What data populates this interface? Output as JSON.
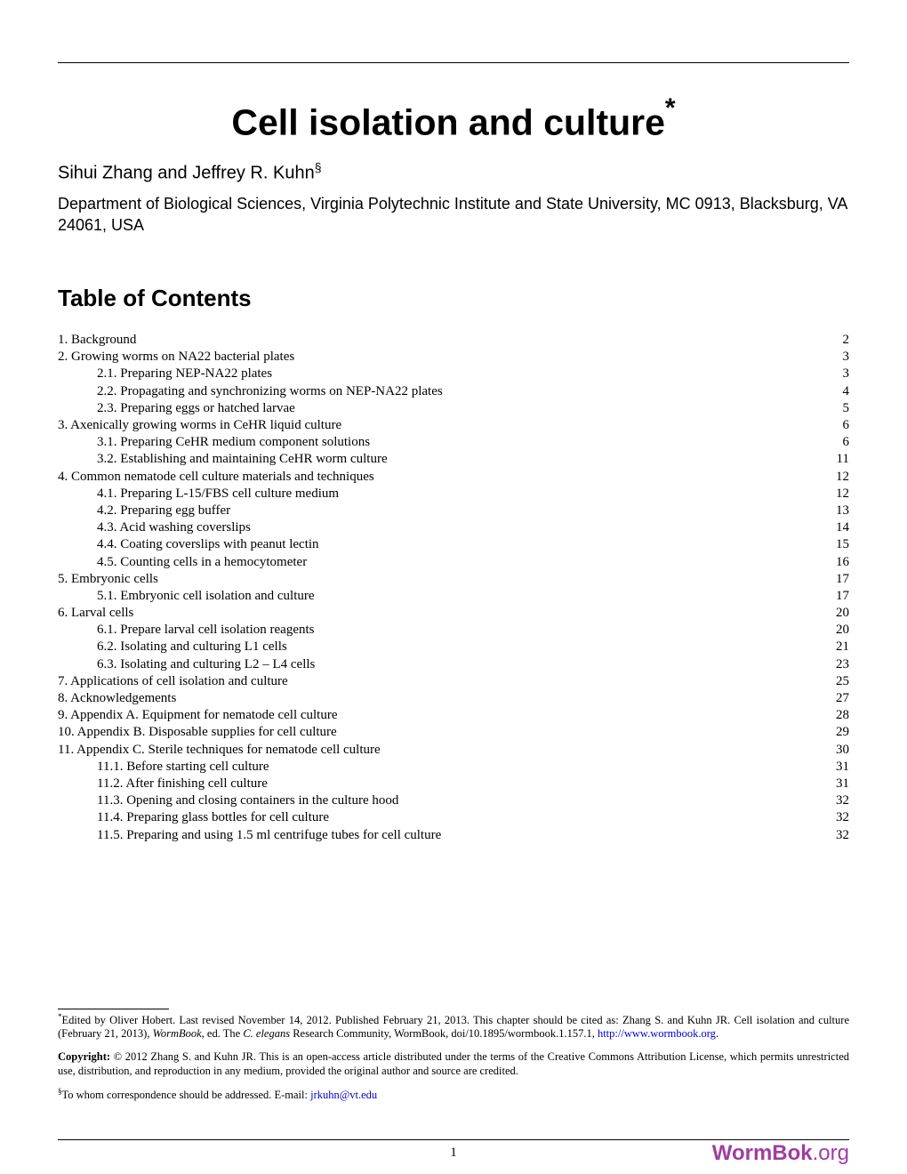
{
  "title": "Cell isolation and culture",
  "title_footnote_marker": "*",
  "authors": "Sihui Zhang and Jeffrey R. Kuhn",
  "authors_marker": "§",
  "affiliation": "Department of Biological Sciences, Virginia Polytechnic Institute and State University, MC 0913, Blacksburg, VA 24061, USA",
  "toc_heading": "Table of Contents",
  "toc": [
    {
      "label": "1. Background",
      "page": "2",
      "sub": false
    },
    {
      "label": "2. Growing worms on NA22 bacterial plates",
      "page": "3",
      "sub": false
    },
    {
      "label": "2.1. Preparing NEP-NA22 plates",
      "page": "3",
      "sub": true
    },
    {
      "label": "2.2. Propagating and synchronizing worms on NEP-NA22 plates",
      "page": "4",
      "sub": true
    },
    {
      "label": "2.3. Preparing eggs or hatched larvae",
      "page": "5",
      "sub": true
    },
    {
      "label": "3. Axenically growing worms in CeHR liquid culture",
      "page": "6",
      "sub": false
    },
    {
      "label": "3.1. Preparing CeHR medium component solutions",
      "page": "6",
      "sub": true
    },
    {
      "label": "3.2. Establishing and maintaining CeHR worm culture",
      "page": "11",
      "sub": true
    },
    {
      "label": "4. Common nematode cell culture materials and techniques",
      "page": "12",
      "sub": false
    },
    {
      "label": "4.1. Preparing L-15/FBS cell culture medium",
      "page": "12",
      "sub": true
    },
    {
      "label": "4.2. Preparing egg buffer",
      "page": "13",
      "sub": true
    },
    {
      "label": "4.3. Acid washing coverslips",
      "page": "14",
      "sub": true
    },
    {
      "label": "4.4. Coating coverslips with peanut lectin",
      "page": "15",
      "sub": true
    },
    {
      "label": "4.5. Counting cells in a hemocytometer",
      "page": "16",
      "sub": true
    },
    {
      "label": "5. Embryonic cells",
      "page": "17",
      "sub": false
    },
    {
      "label": "5.1. Embryonic cell isolation and culture",
      "page": "17",
      "sub": true
    },
    {
      "label": "6. Larval cells",
      "page": "20",
      "sub": false
    },
    {
      "label": "6.1. Prepare larval cell isolation reagents",
      "page": "20",
      "sub": true
    },
    {
      "label": "6.2. Isolating and culturing L1 cells",
      "page": "21",
      "sub": true
    },
    {
      "label": "6.3. Isolating and culturing L2 – L4 cells",
      "page": "23",
      "sub": true
    },
    {
      "label": "7. Applications of cell isolation and culture",
      "page": "25",
      "sub": false
    },
    {
      "label": "8. Acknowledgements",
      "page": "27",
      "sub": false
    },
    {
      "label": "9. Appendix A. Equipment for nematode cell culture",
      "page": "28",
      "sub": false
    },
    {
      "label": "10. Appendix B. Disposable supplies for cell culture",
      "page": "29",
      "sub": false
    },
    {
      "label": "11. Appendix C. Sterile techniques for nematode cell culture",
      "page": "30",
      "sub": false
    },
    {
      "label": "11.1. Before starting cell culture",
      "page": "31",
      "sub": true
    },
    {
      "label": "11.2. After finishing cell culture",
      "page": "31",
      "sub": true
    },
    {
      "label": "11.3. Opening and closing containers in the culture hood",
      "page": "32",
      "sub": true
    },
    {
      "label": "11.4. Preparing glass bottles for cell culture",
      "page": "32",
      "sub": true
    },
    {
      "label": "11.5. Preparing and using 1.5 ml centrifuge tubes for cell culture",
      "page": "32",
      "sub": true
    }
  ],
  "footnote1_pre": "Edited by Oliver Hobert. Last revised November 14, 2012. Published February 21, 2013. This chapter should be cited as: Zhang S. and Kuhn JR. Cell isolation and culture (February 21, 2013), ",
  "footnote1_italic1": "WormBook",
  "footnote1_mid": ", ed. The ",
  "footnote1_italic2": "C. elegans",
  "footnote1_post": " Research Community, WormBook, doi/10.1895/wormbook.1.157.1, ",
  "footnote1_link": "http://www.wormbook.org",
  "footnote1_end": ".",
  "copyright_label": "Copyright:",
  "copyright_text": " © 2012 Zhang S. and Kuhn JR. This is an open-access article distributed under the terms of the Creative Commons Attribution License, which permits unrestricted use, distribution, and reproduction in any medium, provided the original author and source are credited.",
  "correspondence_marker": "§",
  "correspondence_text": "To whom correspondence should be addressed. E-mail: ",
  "correspondence_email": "jrkuhn@vt.edu",
  "page_number": "1",
  "logo_bold": "WormB",
  "logo_reg_overlay": "®",
  "logo_bold2": "ok",
  "logo_light": ".org"
}
